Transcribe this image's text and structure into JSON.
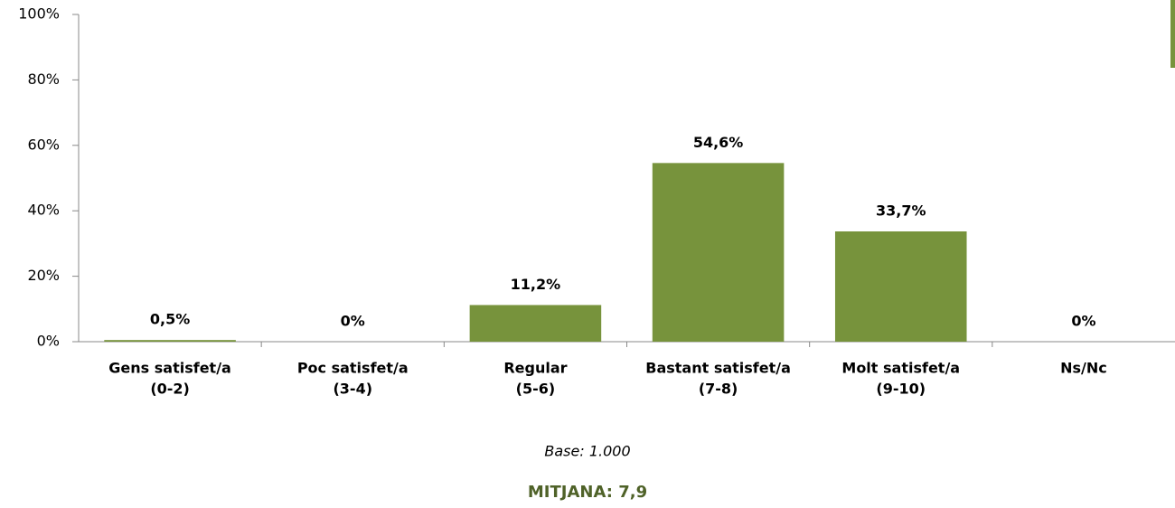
{
  "chart_data": {
    "type": "bar",
    "categories": [
      [
        "Gens satisfet/a",
        "(0-2)"
      ],
      [
        "Poc satisfet/a",
        "(3-4)"
      ],
      [
        "Regular",
        "(5-6)"
      ],
      [
        "Bastant satisfet/a",
        "(7-8)"
      ],
      [
        "Molt satisfet/a",
        "(9-10)"
      ],
      [
        "Ns/Nc"
      ]
    ],
    "values": [
      0.5,
      0,
      11.2,
      54.6,
      33.7,
      0
    ],
    "value_labels": [
      "0,5%",
      "0%",
      "11,2%",
      "54,6%",
      "33,7%",
      "0%"
    ],
    "color": "#77933c",
    "ylim": [
      0,
      100
    ],
    "yticks": [
      {
        "value": 0,
        "label": "0%"
      },
      {
        "value": 20,
        "label": "20%"
      },
      {
        "value": 40,
        "label": "40%"
      },
      {
        "value": 60,
        "label": "60%"
      },
      {
        "value": 80,
        "label": "80%"
      },
      {
        "value": 100,
        "label": "100%"
      }
    ],
    "grid": false,
    "notes": [
      "Base: 1.000",
      "MITJANA: 7,9"
    ]
  }
}
